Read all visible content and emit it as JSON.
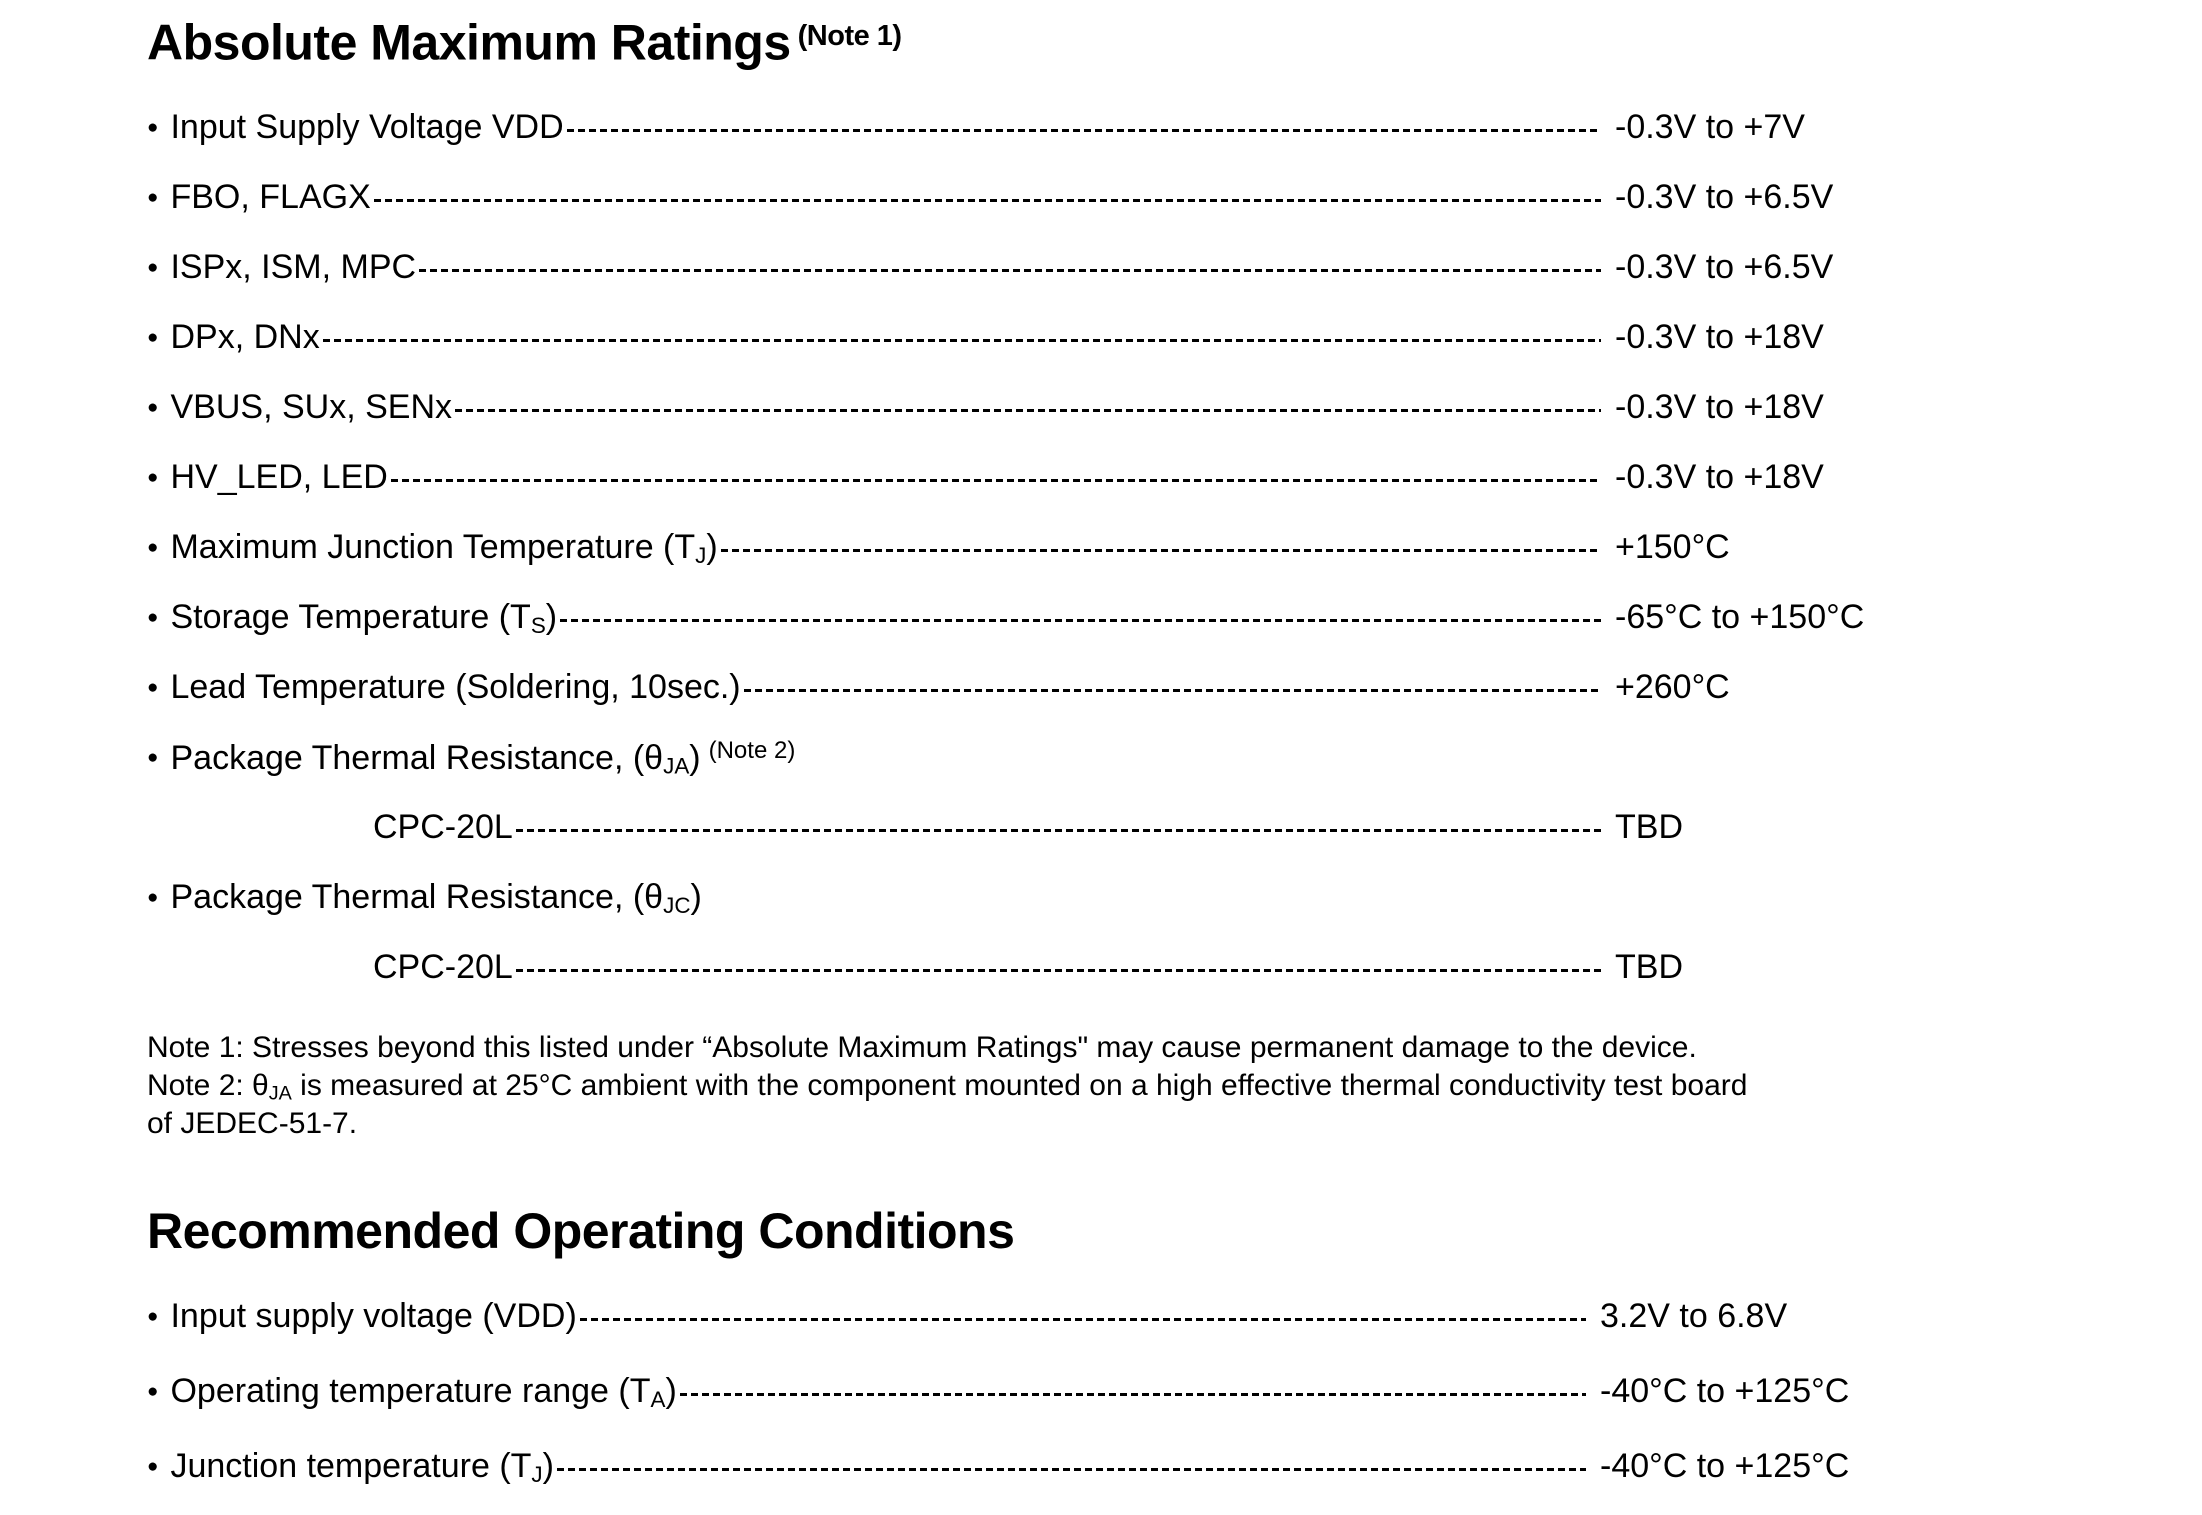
{
  "colors": {
    "background": "#ffffff",
    "text": "#000000"
  },
  "icons": {
    "bullet": "●"
  },
  "abs": {
    "title": "Absolute Maximum Ratings",
    "title_note": "(Note 1)",
    "rows": [
      {
        "pre": "Input Supply Voltage VDD",
        "value": "-0.3V to +7V"
      },
      {
        "pre": "FBO, FLAGX",
        "value": "-0.3V to +6.5V"
      },
      {
        "pre": "ISPx, ISM, MPC",
        "value": "-0.3V to +6.5V"
      },
      {
        "pre": "DPx, DNx",
        "value": "-0.3V to +18V"
      },
      {
        "pre": "VBUS, SUx, SENx",
        "value": "-0.3V to +18V"
      },
      {
        "pre": "HV_LED, LED",
        "value": "-0.3V to +18V"
      },
      {
        "pre": "Maximum Junction Temperature (T",
        "sub": "J",
        "post": ")",
        "value": "+150°C"
      },
      {
        "pre": "Storage Temperature (T",
        "sub": "S",
        "post": ")",
        "value": "-65°C to +150°C"
      },
      {
        "pre": "Lead Temperature (Soldering, 10sec.)",
        "value": "+260°C"
      },
      {
        "pre": "Package Thermal Resistance, (θ",
        "sub": "JA",
        "post": ")",
        "sup": "(Note 2)"
      },
      {
        "pre": "CPC-20L",
        "value": "TBD"
      },
      {
        "pre": "Package Thermal Resistance, (θ",
        "sub": "JC",
        "post": ")"
      },
      {
        "pre": "CPC-20L",
        "value": "TBD"
      }
    ],
    "notes": {
      "n1": "Note 1: Stresses beyond this listed under “Absolute Maximum Ratings\" may cause permanent damage to the device.",
      "n2_pre": "Note 2: θ",
      "n2_sub": "JA",
      "n2_rest": " is measured at 25°C ambient with the component mounted on a high effective thermal conductivity test board",
      "n3": "of JEDEC-51-7."
    }
  },
  "rec": {
    "title": "Recommended Operating Conditions",
    "rows": [
      {
        "pre": "Input supply voltage (VDD)",
        "value": "3.2V to 6.8V"
      },
      {
        "pre": "Operating temperature range (T",
        "sub": "A",
        "post": ")",
        "value": "-40°C to +125°C"
      },
      {
        "pre": "Junction temperature (T",
        "sub": "J",
        "post": ")",
        "value": "-40°C to +125°C"
      }
    ]
  }
}
